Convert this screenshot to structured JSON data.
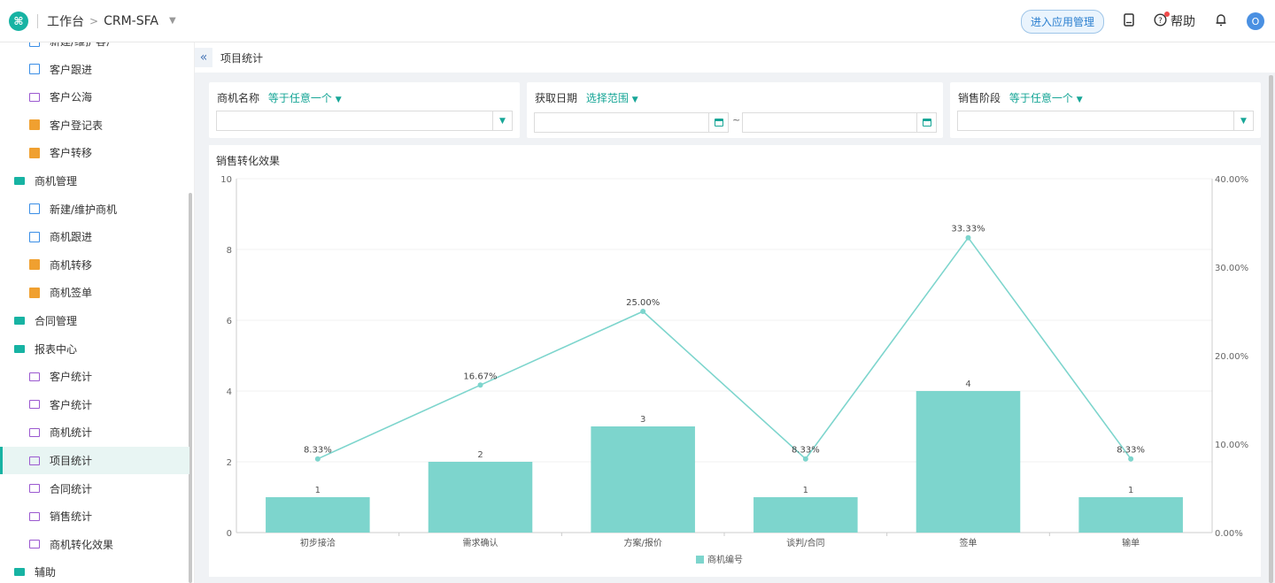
{
  "topbar": {
    "logo_glyph": "⌘",
    "workspace": "工作台",
    "crumb_sep": ">",
    "app_name": "CRM-SFA",
    "enter_app_mgmt": "进入应用管理",
    "help_label": "帮助",
    "avatar_initial": "O"
  },
  "sidebar": {
    "items": [
      {
        "label": "新建/维护客户",
        "icon": "doc-icon",
        "kind": "child"
      },
      {
        "label": "客户跟进",
        "icon": "doc-icon",
        "kind": "child"
      },
      {
        "label": "客户公海",
        "icon": "screen-icon",
        "kind": "child"
      },
      {
        "label": "客户登记表",
        "icon": "clipboard-icon",
        "kind": "child"
      },
      {
        "label": "客户转移",
        "icon": "clipboard-icon",
        "kind": "child"
      },
      {
        "label": "商机管理",
        "icon": "folder-icon",
        "kind": "group"
      },
      {
        "label": "新建/维护商机",
        "icon": "doc-icon",
        "kind": "child"
      },
      {
        "label": "商机跟进",
        "icon": "doc-icon",
        "kind": "child"
      },
      {
        "label": "商机转移",
        "icon": "clipboard-icon",
        "kind": "child"
      },
      {
        "label": "商机签单",
        "icon": "clipboard-icon",
        "kind": "child"
      },
      {
        "label": "合同管理",
        "icon": "folder-icon",
        "kind": "group"
      },
      {
        "label": "报表中心",
        "icon": "folder-icon",
        "kind": "group"
      },
      {
        "label": "客户统计",
        "icon": "screen-icon",
        "kind": "child"
      },
      {
        "label": "客户统计",
        "icon": "screen-icon",
        "kind": "child"
      },
      {
        "label": "商机统计",
        "icon": "screen-icon",
        "kind": "child"
      },
      {
        "label": "项目统计",
        "icon": "screen-icon",
        "kind": "child",
        "active": true
      },
      {
        "label": "合同统计",
        "icon": "screen-icon",
        "kind": "child"
      },
      {
        "label": "销售统计",
        "icon": "screen-icon",
        "kind": "child"
      },
      {
        "label": "商机转化效果",
        "icon": "screen-icon",
        "kind": "child"
      },
      {
        "label": "辅助",
        "icon": "folder-icon",
        "kind": "group"
      }
    ]
  },
  "tabbar": {
    "collapse_glyph": "«",
    "page_title": "项目统计"
  },
  "filters": {
    "opportunity_name": {
      "label": "商机名称",
      "operator": "等于任意一个",
      "value": ""
    },
    "acquire_date": {
      "label": "获取日期",
      "operator": "选择范围",
      "start": "",
      "end": "",
      "sep": "~"
    },
    "sales_stage": {
      "label": "销售阶段",
      "operator": "等于任意一个",
      "value": ""
    }
  },
  "chart_title": "销售转化效果",
  "colors": {
    "bar": "#7dd5cd",
    "line": "#7dd5cd",
    "accent": "#17a697"
  },
  "chart_data": {
    "type": "bar",
    "title": "销售转化效果",
    "categories": [
      "初步接洽",
      "需求确认",
      "方案/报价",
      "谈判/合同",
      "签单",
      "输单"
    ],
    "series": [
      {
        "name": "商机编号",
        "type": "bar",
        "values": [
          1,
          2,
          3,
          1,
          4,
          1
        ],
        "axis": "left"
      },
      {
        "type": "line",
        "values": [
          8.33,
          16.67,
          25.0,
          8.33,
          33.33,
          8.33
        ],
        "axis": "right",
        "labels": [
          "8.33%",
          "16.67%",
          "25.00%",
          "8.33%",
          "33.33%",
          "8.33%"
        ]
      }
    ],
    "ylim": [
      0,
      10
    ],
    "yticks": [
      "0",
      "2",
      "4",
      "6",
      "8",
      "10"
    ],
    "y2lim": [
      0,
      40
    ],
    "y2ticks": [
      "0.00%",
      "10.00%",
      "20.00%",
      "30.00%",
      "40.00%"
    ],
    "legend": "bottom-center",
    "grid": true
  }
}
